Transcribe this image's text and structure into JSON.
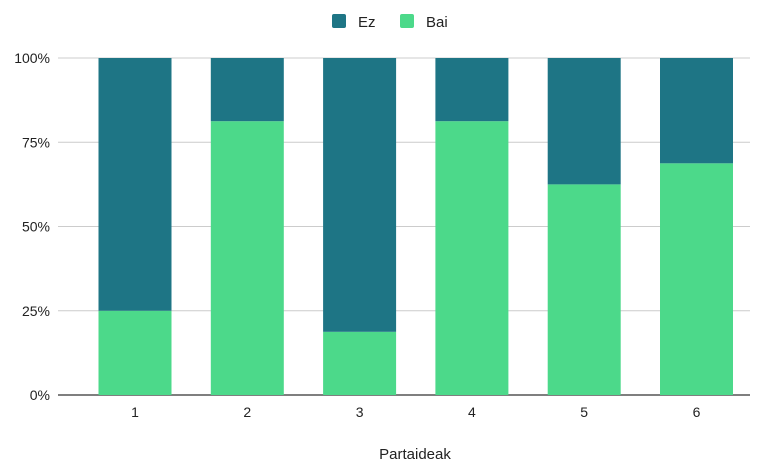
{
  "chart_data": {
    "type": "bar",
    "stacked": true,
    "normalized": true,
    "title": "",
    "xlabel": "Partaideak",
    "ylabel": "",
    "categories": [
      "1",
      "2",
      "3",
      "4",
      "5",
      "6"
    ],
    "series": [
      {
        "name": "Bai",
        "values": [
          25,
          81.25,
          18.75,
          81.25,
          62.5,
          68.75
        ]
      },
      {
        "name": "Ez",
        "values": [
          75,
          18.75,
          81.25,
          18.75,
          37.5,
          31.25
        ]
      }
    ],
    "yticks": [
      "0%",
      "25%",
      "50%",
      "75%",
      "100%"
    ],
    "ylim": [
      0,
      100
    ],
    "grid": true,
    "legend_position": "top",
    "legend_order": [
      "Ez",
      "Bai"
    ],
    "colors": {
      "Ez": "#1e7585",
      "Bai": "#4cd98a",
      "grid": "#cccccc",
      "axis": "#333333"
    }
  }
}
